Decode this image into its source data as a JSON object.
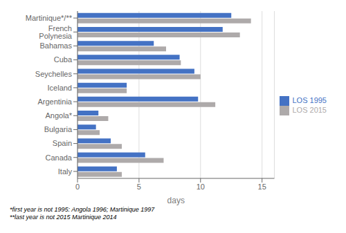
{
  "chart_data": {
    "type": "bar",
    "orientation": "horizontal",
    "categories": [
      "Italy",
      "Canada",
      "Spain",
      "Bulgaria",
      "Angola*",
      "Argentinia",
      "Iceland",
      "Seychelles",
      "Cuba",
      "Bahamas",
      "French Polynesia",
      "Martinique*/**"
    ],
    "series": [
      {
        "name": "LOS 1995",
        "color": "#4472C4",
        "values": [
          3.2,
          5.5,
          2.7,
          1.5,
          1.7,
          9.8,
          4.0,
          9.5,
          8.3,
          6.2,
          11.8,
          12.5
        ]
      },
      {
        "name": "LOS 2015",
        "color": "#AEAAAA",
        "values": [
          3.6,
          7.0,
          3.6,
          1.8,
          2.5,
          11.2,
          4.0,
          10.0,
          8.4,
          7.2,
          13.2,
          14.1
        ]
      }
    ],
    "xlabel": "days",
    "xlim": [
      0,
      16
    ],
    "xticks": [
      0,
      5,
      10,
      15
    ],
    "grid": true,
    "legend": "right",
    "annotations": [
      "*first year is not 1995: Angola 1996; Martinique 1997",
      "**last year is not 2015 Martinique 2014"
    ]
  }
}
